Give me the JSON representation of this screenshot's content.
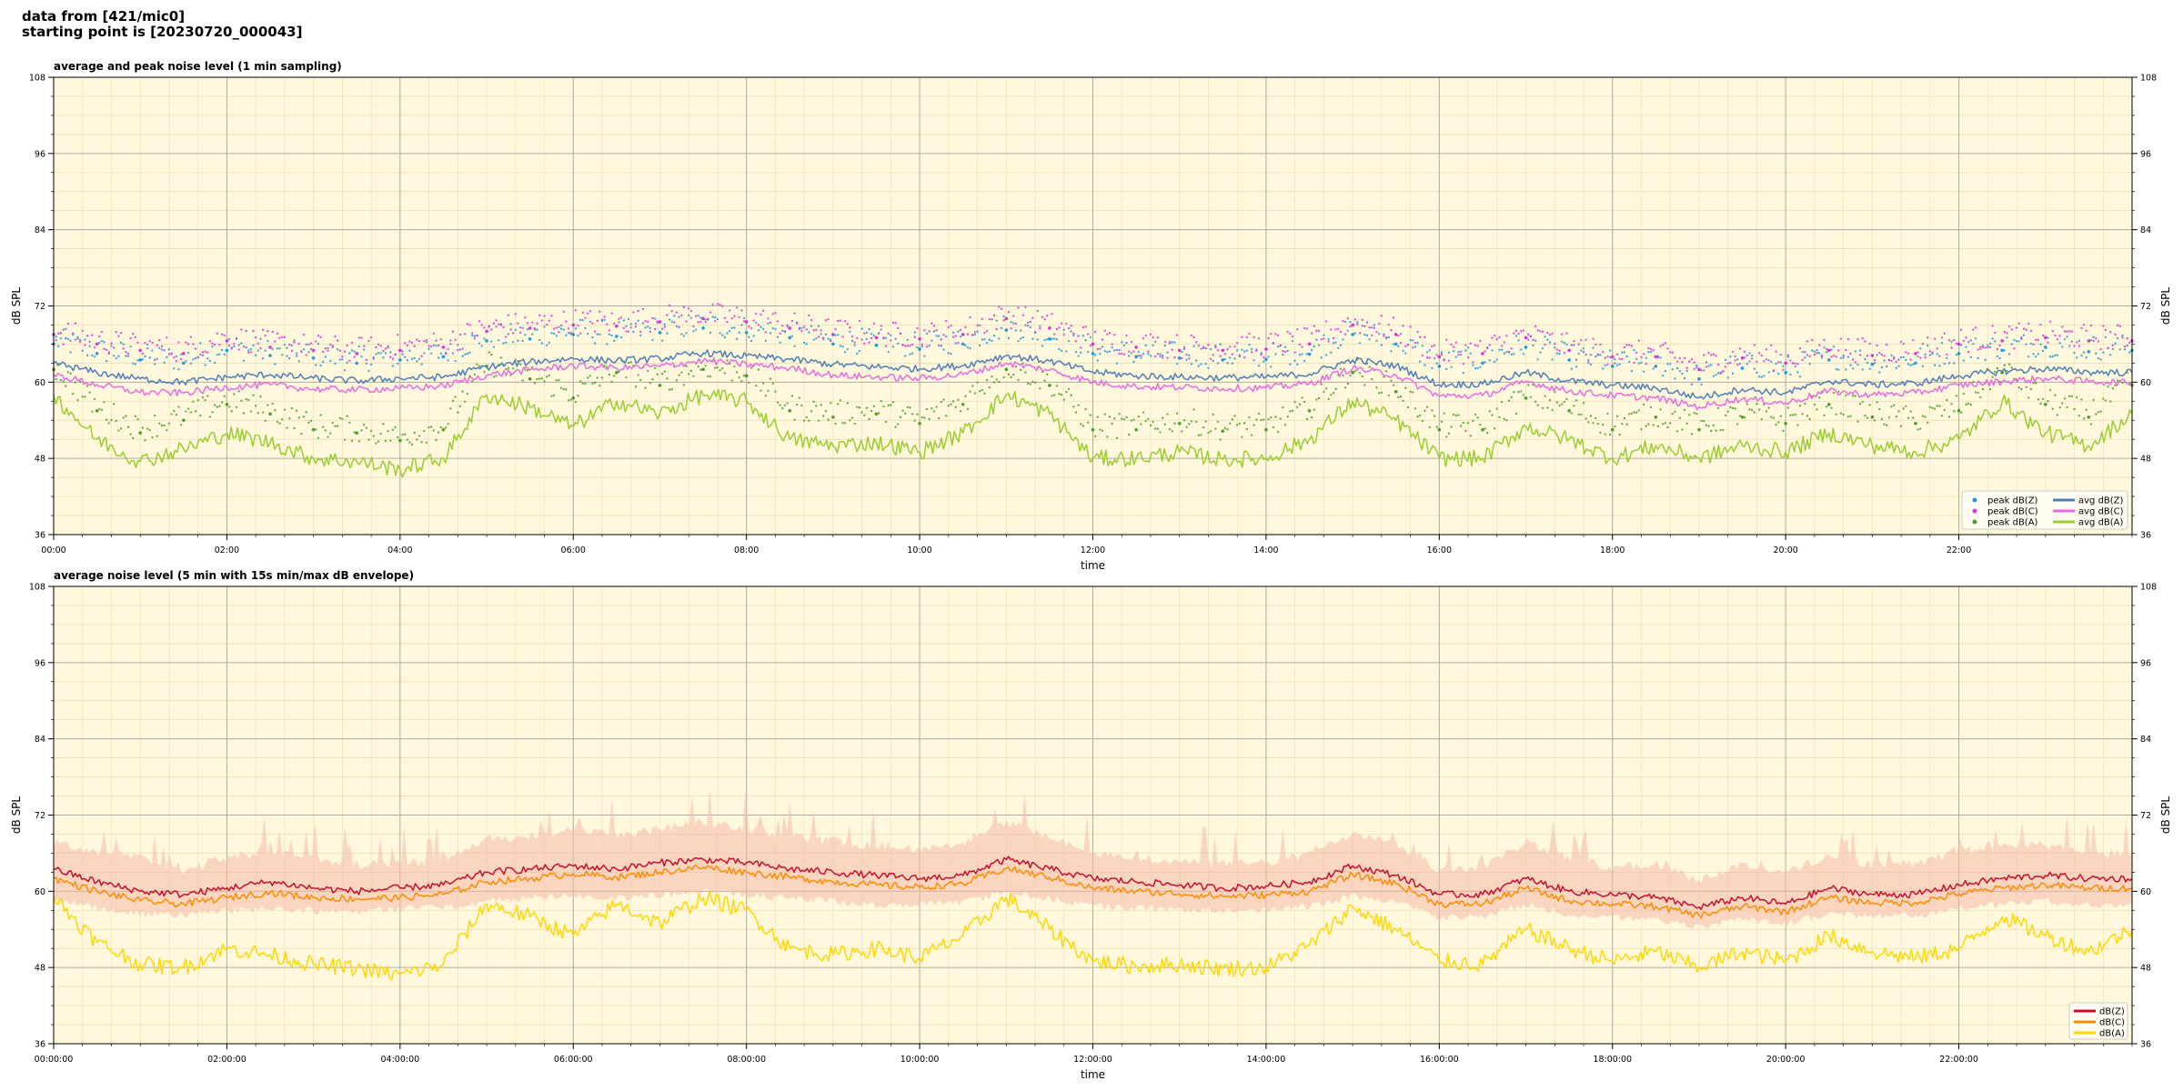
{
  "header": {
    "line1": "data from [421/mic0]",
    "line2": "starting point is [20230720_000043]"
  },
  "colors": {
    "background": "#fff8dc",
    "zpeak": "#1f9bd8",
    "cpeak": "#d837d8",
    "apeak": "#4aa02c",
    "zavg": "#4f7fb8",
    "cavg": "#e86ce0",
    "aavg": "#9acd32",
    "z": "#c8102e",
    "c": "#ff8c00",
    "a": "#ffd700",
    "envelope": "#f5b8a8"
  },
  "chart_data": [
    {
      "type": "line",
      "title": "average and peak noise level (1 min sampling)",
      "xlabel": "time",
      "ylabel": "dB SPL",
      "ylim": [
        36,
        108
      ],
      "xlim_hours": [
        0,
        24
      ],
      "yticks": [
        "36",
        "48",
        "60",
        "72",
        "84",
        "96",
        "108"
      ],
      "xticks": [
        "00:00",
        "02:00",
        "04:00",
        "06:00",
        "08:00",
        "10:00",
        "12:00",
        "14:00",
        "16:00",
        "18:00",
        "20:00",
        "22:00"
      ],
      "grid": true,
      "legend_position": "lower-right",
      "x_hours": [
        0,
        0.5,
        1,
        1.5,
        2,
        2.5,
        3,
        3.5,
        4,
        4.5,
        5,
        5.5,
        6,
        6.5,
        7,
        7.5,
        8,
        8.5,
        9,
        9.5,
        10,
        10.5,
        11,
        11.5,
        12,
        12.5,
        13,
        13.5,
        14,
        14.5,
        15,
        15.5,
        16,
        16.5,
        17,
        17.5,
        18,
        18.5,
        19,
        19.5,
        20,
        20.5,
        21,
        21.5,
        22,
        22.5,
        23,
        23.5,
        24
      ],
      "series": [
        {
          "name": "avg dB(Z)",
          "kind": "line",
          "color_key": "zavg",
          "values": [
            63.0,
            61.5,
            60.5,
            60.0,
            60.8,
            61.2,
            60.6,
            60.2,
            60.6,
            60.8,
            62.4,
            63.2,
            63.7,
            63.4,
            63.7,
            64.6,
            64.1,
            63.6,
            62.8,
            62.4,
            62.1,
            62.6,
            64.2,
            63.3,
            61.6,
            61.0,
            60.8,
            60.7,
            60.8,
            61.3,
            63.5,
            62.6,
            59.6,
            59.7,
            61.5,
            60.2,
            59.5,
            59.1,
            57.6,
            58.9,
            58.3,
            60.2,
            59.6,
            59.8,
            61.0,
            61.7,
            62.1,
            61.6,
            61.5
          ]
        },
        {
          "name": "avg dB(C)",
          "kind": "line",
          "color_key": "cavg",
          "values": [
            61.2,
            59.6,
            58.4,
            58.3,
            59.2,
            59.6,
            58.9,
            58.8,
            59.0,
            59.4,
            61.1,
            61.9,
            62.6,
            62.2,
            62.5,
            63.4,
            62.8,
            62.2,
            61.1,
            60.8,
            60.6,
            61.2,
            63.0,
            61.9,
            60.0,
            59.3,
            59.2,
            59.0,
            59.1,
            59.8,
            62.2,
            61.1,
            57.8,
            57.9,
            60.1,
            58.6,
            57.9,
            57.5,
            56.1,
            57.4,
            56.7,
            58.6,
            58.0,
            58.3,
            59.5,
            60.1,
            60.6,
            60.1,
            59.9
          ]
        },
        {
          "name": "avg dB(A)",
          "kind": "line",
          "color_key": "aavg",
          "values": [
            58.0,
            51.0,
            47.5,
            49.5,
            52.0,
            50.5,
            48.0,
            47.5,
            46.2,
            48.0,
            58.0,
            56.0,
            53.0,
            57.0,
            55.0,
            58.0,
            57.0,
            51.0,
            50.0,
            50.5,
            49.0,
            52.0,
            58.0,
            55.0,
            48.0,
            48.0,
            49.0,
            47.8,
            48.0,
            51.0,
            57.0,
            54.0,
            48.0,
            48.0,
            53.0,
            51.0,
            48.0,
            50.0,
            48.0,
            50.0,
            49.0,
            52.0,
            50.0,
            49.0,
            51.0,
            57.0,
            52.0,
            50.0,
            55.0
          ]
        },
        {
          "name": "peak dB(Z)",
          "kind": "scatter",
          "color_key": "zpeak",
          "values": [
            66.0,
            64.5,
            63.5,
            63.0,
            65.0,
            64.2,
            63.8,
            63.0,
            63.5,
            64.0,
            66.5,
            66.8,
            67.5,
            67.2,
            67.8,
            68.5,
            67.8,
            67.0,
            66.0,
            65.8,
            65.2,
            66.0,
            68.2,
            66.8,
            64.5,
            64.0,
            63.8,
            63.5,
            63.6,
            64.4,
            67.5,
            66.0,
            62.5,
            63.0,
            65.5,
            63.5,
            62.5,
            62.5,
            60.5,
            62.2,
            61.5,
            63.5,
            62.8,
            63.0,
            64.5,
            65.0,
            65.5,
            64.8,
            65.0
          ]
        },
        {
          "name": "peak dB(C)",
          "kind": "scatter",
          "color_key": "cpeak",
          "values": [
            67.5,
            66.0,
            65.0,
            64.5,
            66.5,
            65.5,
            65.0,
            64.5,
            65.0,
            65.5,
            68.0,
            68.5,
            69.0,
            68.8,
            69.5,
            70.0,
            69.5,
            68.5,
            67.5,
            67.0,
            66.8,
            67.5,
            70.0,
            68.5,
            66.0,
            65.5,
            65.0,
            65.0,
            65.2,
            66.0,
            69.0,
            67.5,
            64.0,
            64.5,
            67.0,
            65.0,
            64.0,
            64.0,
            62.0,
            63.8,
            63.0,
            65.0,
            64.2,
            64.5,
            66.0,
            66.5,
            67.0,
            66.5,
            66.5
          ]
        },
        {
          "name": "peak dB(A)",
          "kind": "scatter",
          "color_key": "apeak",
          "values": [
            62.0,
            55.5,
            52.0,
            54.0,
            56.5,
            55.0,
            52.5,
            52.0,
            50.8,
            52.5,
            62.5,
            60.5,
            57.5,
            61.5,
            59.5,
            62.0,
            61.0,
            55.5,
            54.5,
            55.0,
            53.5,
            56.5,
            62.0,
            59.5,
            52.5,
            52.5,
            53.5,
            52.3,
            52.5,
            55.5,
            61.5,
            58.5,
            52.5,
            52.5,
            57.5,
            55.5,
            52.5,
            54.5,
            52.5,
            54.5,
            53.5,
            56.5,
            54.5,
            53.5,
            55.5,
            61.5,
            56.5,
            54.5,
            59.5
          ]
        }
      ]
    },
    {
      "type": "line",
      "title": "average noise level (5 min with 15s min/max dB envelope)",
      "xlabel": "time",
      "ylabel": "dB SPL",
      "ylim": [
        36,
        108
      ],
      "xlim_hours": [
        0,
        24
      ],
      "yticks": [
        "36",
        "48",
        "60",
        "72",
        "84",
        "96",
        "108"
      ],
      "xticks": [
        "00:00:00",
        "02:00:00",
        "04:00:00",
        "06:00:00",
        "08:00:00",
        "10:00:00",
        "12:00:00",
        "14:00:00",
        "16:00:00",
        "18:00:00",
        "20:00:00",
        "22:00:00"
      ],
      "grid": true,
      "legend_position": "lower-right",
      "x_hours": [
        0,
        0.5,
        1,
        1.5,
        2,
        2.5,
        3,
        3.5,
        4,
        4.5,
        5,
        5.5,
        6,
        6.5,
        7,
        7.5,
        8,
        8.5,
        9,
        9.5,
        10,
        10.5,
        11,
        11.5,
        12,
        12.5,
        13,
        13.5,
        14,
        14.5,
        15,
        15.5,
        16,
        16.5,
        17,
        17.5,
        18,
        18.5,
        19,
        19.5,
        20,
        20.5,
        21,
        21.5,
        22,
        22.5,
        23,
        23.5,
        24
      ],
      "series": [
        {
          "name": "dB(Z)",
          "kind": "line",
          "color_key": "z",
          "values": [
            63.5,
            61.5,
            60.0,
            59.5,
            60.5,
            61.5,
            60.5,
            60.0,
            60.5,
            61.0,
            63.0,
            63.5,
            64.0,
            63.5,
            64.5,
            65.0,
            64.5,
            63.5,
            63.0,
            62.5,
            62.0,
            62.5,
            65.0,
            63.5,
            62.0,
            61.5,
            61.0,
            60.5,
            60.8,
            61.5,
            64.0,
            62.5,
            59.5,
            59.5,
            62.0,
            60.0,
            59.5,
            59.0,
            57.5,
            59.0,
            58.0,
            60.5,
            59.5,
            59.5,
            61.0,
            62.0,
            62.5,
            62.0,
            62.0
          ]
        },
        {
          "name": "dB(C)",
          "kind": "line",
          "color_key": "c",
          "values": [
            62.0,
            60.0,
            58.5,
            58.0,
            59.0,
            59.8,
            59.0,
            58.8,
            59.0,
            59.5,
            61.5,
            62.0,
            62.8,
            62.2,
            63.0,
            63.8,
            63.0,
            62.2,
            61.5,
            61.0,
            60.6,
            61.2,
            63.6,
            62.2,
            60.5,
            60.0,
            59.6,
            59.2,
            59.4,
            60.0,
            62.6,
            61.2,
            58.0,
            58.0,
            60.5,
            58.5,
            58.0,
            57.6,
            56.2,
            57.6,
            56.8,
            59.0,
            58.2,
            58.2,
            59.6,
            60.5,
            61.0,
            60.5,
            60.5
          ]
        },
        {
          "name": "dB(A)",
          "kind": "line",
          "color_key": "a",
          "values": [
            59.0,
            52.0,
            48.5,
            48.0,
            51.0,
            50.0,
            48.5,
            47.8,
            46.8,
            48.5,
            58.0,
            56.0,
            53.0,
            58.0,
            55.0,
            59.0,
            57.0,
            51.0,
            50.0,
            51.0,
            49.5,
            53.0,
            59.0,
            54.0,
            49.0,
            48.2,
            48.5,
            47.8,
            48.0,
            51.5,
            57.5,
            54.0,
            49.0,
            48.5,
            54.0,
            51.0,
            49.0,
            50.5,
            48.0,
            50.5,
            49.0,
            53.0,
            50.5,
            49.5,
            51.0,
            56.0,
            53.0,
            50.5,
            54.0
          ]
        },
        {
          "name": "envelope max",
          "kind": "band-upper",
          "color_key": "envelope",
          "values": [
            67.0,
            65.5,
            64.5,
            62.5,
            64.5,
            65.5,
            64.5,
            63.5,
            63.5,
            64.0,
            67.5,
            68.0,
            69.0,
            68.0,
            69.0,
            70.0,
            69.0,
            68.0,
            67.0,
            66.5,
            66.0,
            67.0,
            70.0,
            68.0,
            65.0,
            64.5,
            64.0,
            63.5,
            63.8,
            65.0,
            68.5,
            67.0,
            62.5,
            63.0,
            67.0,
            64.5,
            63.0,
            63.5,
            61.0,
            63.5,
            62.0,
            65.0,
            63.5,
            63.5,
            65.5,
            66.5,
            66.5,
            65.5,
            65.0
          ]
        },
        {
          "name": "envelope min",
          "kind": "band-lower",
          "color_key": "envelope",
          "values": [
            59.5,
            58.0,
            57.0,
            57.0,
            57.5,
            58.0,
            57.5,
            57.5,
            57.8,
            58.0,
            59.0,
            59.5,
            60.0,
            59.5,
            60.0,
            60.8,
            60.0,
            59.5,
            59.0,
            58.5,
            58.5,
            58.8,
            60.5,
            59.5,
            58.2,
            58.0,
            57.8,
            57.5,
            57.8,
            58.2,
            59.8,
            59.0,
            56.5,
            56.5,
            58.5,
            57.0,
            56.5,
            56.0,
            55.0,
            56.2,
            55.5,
            57.2,
            56.8,
            56.8,
            57.8,
            58.5,
            59.0,
            58.5,
            58.5
          ]
        }
      ]
    }
  ]
}
